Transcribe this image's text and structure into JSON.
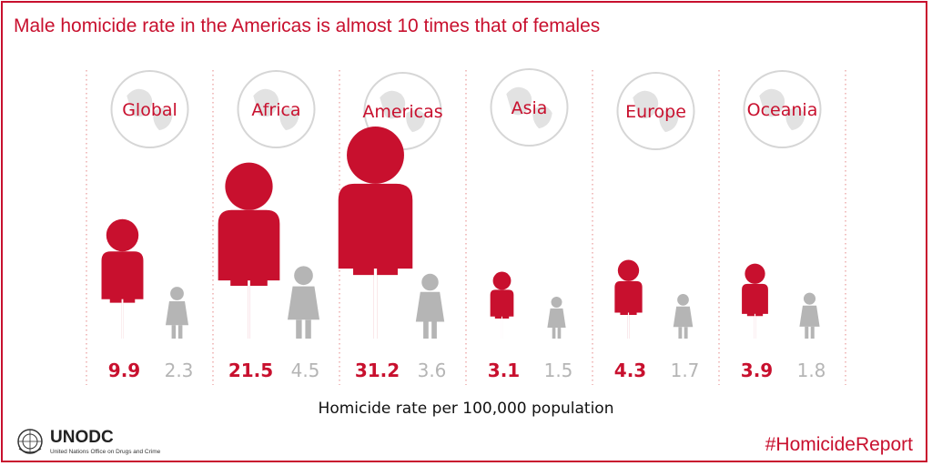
{
  "chart_data": {
    "type": "bar",
    "title": "Male homicide rate in the Americas is almost 10 times that of females",
    "xlabel": "Homicide rate per 100,000 population",
    "categories": [
      "Global",
      "Africa",
      "Americas",
      "Asia",
      "Europe",
      "Oceania"
    ],
    "series": [
      {
        "values": [
          9.9,
          21.5,
          31.2,
          3.1,
          4.3,
          3.9
        ]
      },
      {
        "values": [
          2.3,
          4.5,
          3.6,
          1.5,
          1.7,
          1.8
        ]
      }
    ],
    "colors": {
      "male": "#c8102e",
      "female": "#b5b5b5",
      "globe": "#e2e2e2",
      "divider": "#e89a9a"
    },
    "icons": {
      "region": "globe-icon",
      "male": "male-figure-icon",
      "female": "female-figure-icon"
    }
  },
  "footer": {
    "org": "UNODC",
    "org_full": "United Nations Office on Drugs and Crime",
    "hashtag": "#HomicideReport"
  }
}
